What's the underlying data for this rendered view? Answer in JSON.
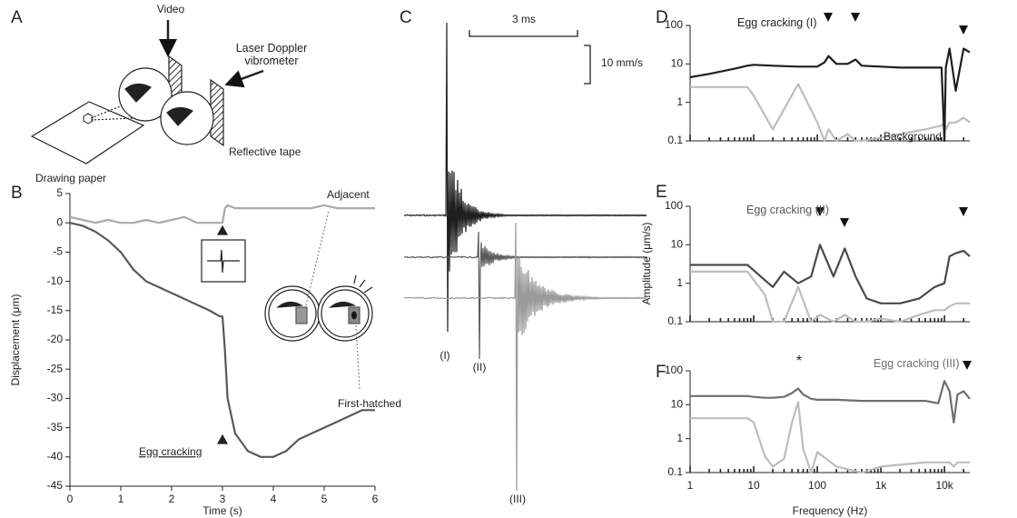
{
  "panel_a": {
    "panel": "A",
    "labels": {
      "video": "Video",
      "vibrometer": "Laser Doppler vibrometer",
      "paper": "Drawing paper",
      "tape": "Reflective tape"
    }
  },
  "panel_c": {
    "panel": "C",
    "time_scale": "3 ms",
    "velocity_scale": "10 mm/s",
    "trace_labels": [
      "(I)",
      "(II)",
      "(III)"
    ]
  },
  "chart_data": [
    {
      "type": "line",
      "panel": "B",
      "xlabel": "Time (s)",
      "ylabel": "Displacement (μm)",
      "x": [
        0,
        0.25,
        0.5,
        0.75,
        1,
        1.25,
        1.5,
        1.75,
        2,
        2.25,
        2.5,
        2.75,
        2.95,
        3.0,
        3.05,
        3.1,
        3.25,
        3.5,
        3.75,
        4,
        4.25,
        4.5,
        4.75,
        5,
        5.25,
        5.5,
        5.75,
        6
      ],
      "xlim": [
        0,
        6
      ],
      "xticks": [
        0,
        1,
        2,
        3,
        4,
        5,
        6
      ],
      "ylim": [
        -45,
        5
      ],
      "yticks": [
        5,
        0,
        -5,
        -10,
        -15,
        -20,
        -25,
        -30,
        -35,
        -40,
        -45
      ],
      "series": [
        {
          "name": "Adjacent",
          "color": "#a9a9a9",
          "values": [
            1,
            0.5,
            0,
            0.5,
            0,
            0,
            0.5,
            0,
            0.5,
            1,
            0,
            0,
            0,
            0,
            2.5,
            3,
            2.5,
            2.5,
            2.5,
            2.5,
            2.5,
            2.5,
            2.5,
            3,
            2.5,
            2.5,
            2.5,
            2.5
          ]
        },
        {
          "name": "First-hatched",
          "color": "#595959",
          "values": [
            0,
            -0.5,
            -1.5,
            -3,
            -5,
            -8,
            -10,
            -11,
            -12,
            -13,
            -14,
            -15,
            -16,
            -16,
            -22,
            -30,
            -36,
            -39,
            -40,
            -40,
            -39,
            -37,
            -36,
            -35,
            -34,
            -33,
            -32,
            -32
          ]
        }
      ],
      "annotations": [
        "Egg cracking"
      ]
    },
    {
      "type": "line",
      "panel": "D",
      "log_x": true,
      "log_y": true,
      "x": [
        1,
        2,
        5,
        8,
        10,
        20,
        50,
        100,
        130,
        150,
        200,
        300,
        400,
        500,
        1000,
        2000,
        5000,
        9000,
        10000,
        10500,
        12000,
        15000,
        20000,
        25000
      ],
      "xlim": [
        1,
        25000
      ],
      "ylim": [
        0.1,
        100
      ],
      "yticks": [
        0.1,
        1,
        10,
        100
      ],
      "series": [
        {
          "name": "Egg cracking (I)",
          "color": "#1e1e1e",
          "values": [
            4.5,
            5.5,
            7.5,
            9,
            9.5,
            9,
            8.5,
            8.5,
            11,
            16,
            10,
            10,
            13,
            9,
            8.5,
            8,
            8,
            8,
            0.1,
            8,
            25,
            2,
            25,
            20
          ]
        },
        {
          "name": "Background",
          "color": "#bdbdbd",
          "values": [
            2.5,
            2.5,
            2.5,
            2.5,
            1.5,
            0.2,
            3,
            0.3,
            0.1,
            0.2,
            0.1,
            0.15,
            0.1,
            0.1,
            0.12,
            0.15,
            0.2,
            0.25,
            0.3,
            0.2,
            0.3,
            0.3,
            0.4,
            0.3
          ]
        }
      ]
    },
    {
      "type": "line",
      "panel": "E",
      "log_x": true,
      "log_y": true,
      "ylabel": "Amplitude (μm/s)",
      "x": [
        1,
        5,
        8,
        15,
        20,
        30,
        50,
        80,
        110,
        180,
        270,
        400,
        600,
        1000,
        2000,
        4000,
        7000,
        10000,
        12000,
        15000,
        20000,
        25000
      ],
      "xlim": [
        1,
        25000
      ],
      "ylim": [
        0.1,
        100
      ],
      "yticks": [
        0.1,
        1,
        10,
        100
      ],
      "series": [
        {
          "name": "Egg cracking (II)",
          "color": "#4a4a4a",
          "values": [
            3,
            3,
            3,
            1.2,
            0.8,
            2,
            1,
            1.5,
            10,
            1.5,
            8,
            1.5,
            0.4,
            0.3,
            0.3,
            0.4,
            0.8,
            1,
            5,
            6,
            7,
            5
          ]
        },
        {
          "color": "#bdbdbd",
          "values": [
            2,
            2,
            2,
            0.5,
            0.1,
            0.1,
            0.8,
            0.1,
            0.15,
            0.1,
            0.15,
            0.1,
            0.1,
            0.12,
            0.1,
            0.15,
            0.2,
            0.2,
            0.25,
            0.3,
            0.3,
            0.3
          ]
        }
      ]
    },
    {
      "type": "line",
      "panel": "F",
      "log_x": true,
      "log_y": true,
      "xlabel": "Frequency (Hz)",
      "x": [
        1,
        8,
        10,
        15,
        20,
        30,
        40,
        50,
        60,
        80,
        100,
        200,
        500,
        1000,
        5000,
        8000,
        10000,
        12000,
        14000,
        16000,
        20000,
        25000
      ],
      "xlim": [
        1,
        25000
      ],
      "xticks": [
        1,
        10,
        100,
        {
          "value": 1000,
          "label": "1k"
        },
        {
          "value": 10000,
          "label": "10k"
        }
      ],
      "ylim": [
        0.1,
        100
      ],
      "yticks": [
        0.1,
        1,
        10,
        100
      ],
      "series": [
        {
          "name": "Egg cracking (III)",
          "color": "#6e6e6e",
          "values": [
            18,
            18,
            17,
            16,
            16,
            17,
            22,
            30,
            20,
            15,
            14,
            14,
            13,
            13,
            13,
            11,
            50,
            25,
            3,
            20,
            25,
            15
          ]
        },
        {
          "color": "#bdbdbd",
          "values": [
            4,
            4,
            3,
            0.3,
            0.15,
            0.25,
            3,
            12,
            0.5,
            0.1,
            0.4,
            0.15,
            0.1,
            0.15,
            0.2,
            0.2,
            0.2,
            0.2,
            0.15,
            0.2,
            0.2,
            0.2
          ]
        }
      ],
      "annotations": [
        "*"
      ]
    }
  ]
}
